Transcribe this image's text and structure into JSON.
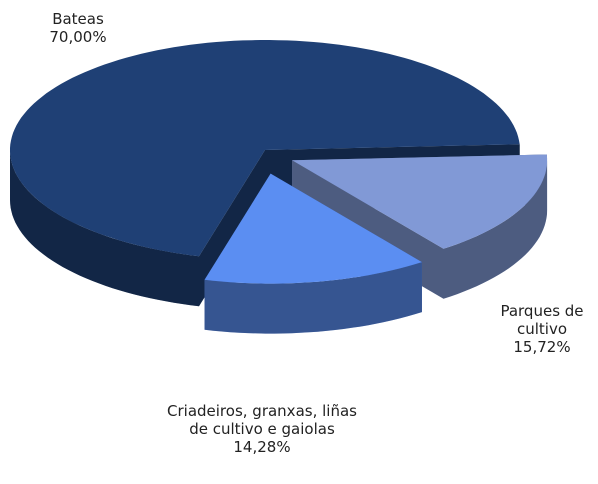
{
  "chart_data": {
    "type": "pie",
    "categories": [
      "Bateas",
      "Parques de cultivo",
      "Criadeiros, granxas, liñas de cultivo e gaiolas"
    ],
    "values": [
      70.0,
      15.72,
      14.28
    ],
    "value_labels": [
      "70,00%",
      "15,72%",
      "14,28%"
    ],
    "colors": [
      "#1f4075",
      "#8199d6",
      "#5b8ef2"
    ]
  }
}
